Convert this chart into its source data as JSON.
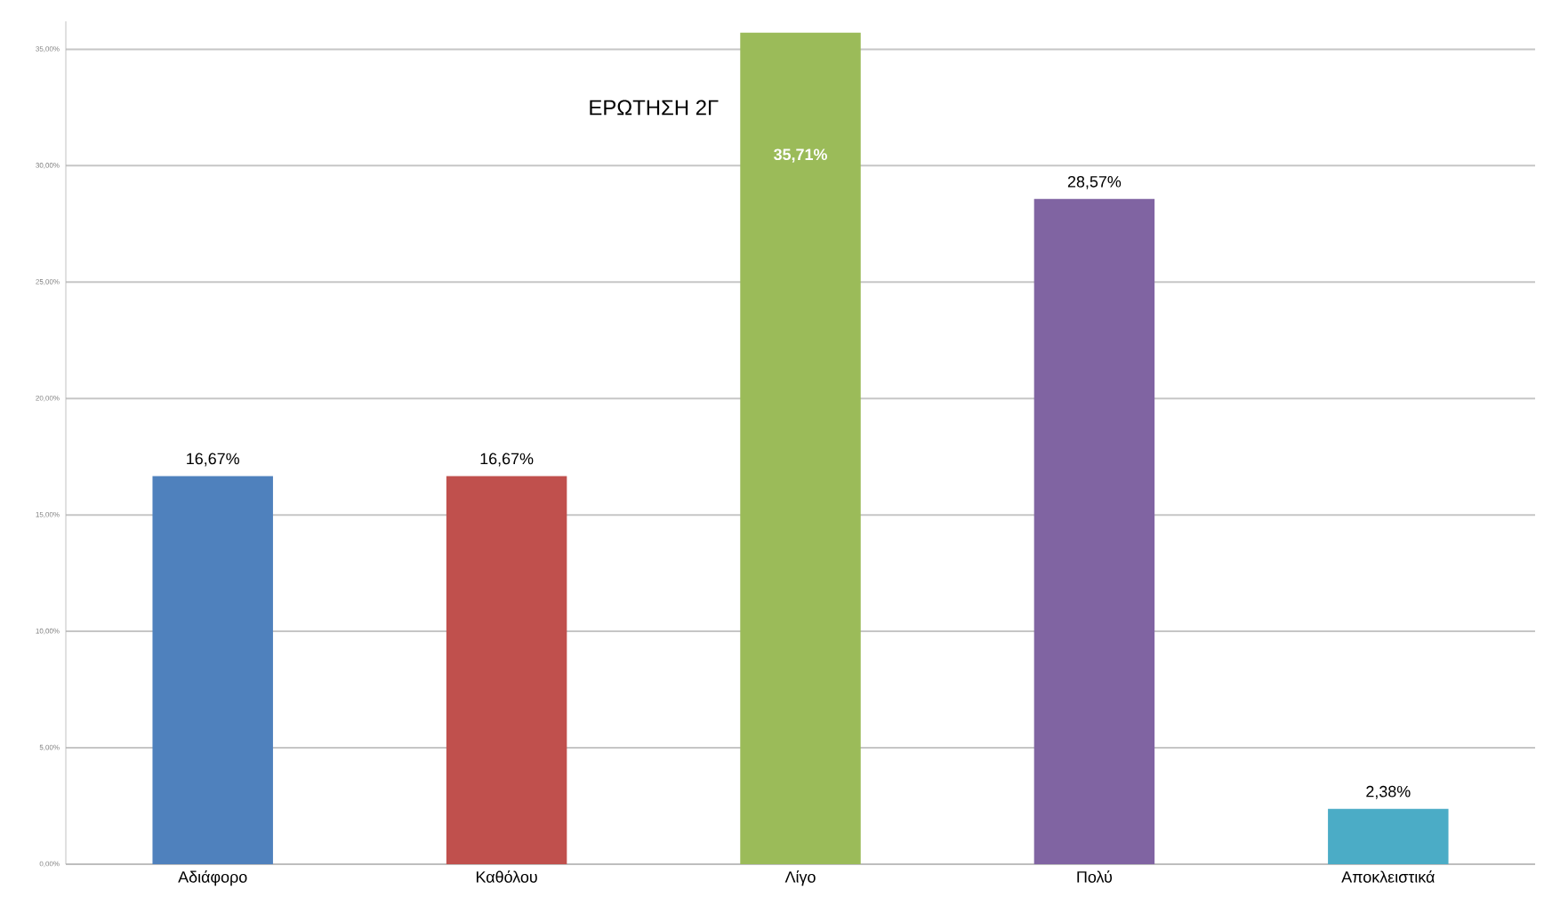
{
  "chart_data": {
    "type": "bar",
    "title": "ΕΡΩΤΗΣΗ 2Γ",
    "categories": [
      "Αδιάφορο",
      "Καθόλου",
      "Λίγο",
      "Πολύ",
      "Αποκλειστικά"
    ],
    "values": [
      16.67,
      16.67,
      35.71,
      28.57,
      2.38
    ],
    "colors": [
      "#4f81bd",
      "#c0504d",
      "#9bbb59",
      "#8064a2",
      "#4bacc6"
    ],
    "value_labels": [
      "16,67%",
      "16,67%",
      "35,71%",
      "28,57%",
      "2,38%"
    ],
    "ylim": [
      0,
      36.2
    ],
    "yticks": [
      {
        "value": 0,
        "label": "0,00%"
      },
      {
        "value": 5,
        "label": "5,00%"
      },
      {
        "value": 10,
        "label": "10,00%"
      },
      {
        "value": 15,
        "label": "15,00%"
      },
      {
        "value": 20,
        "label": "20,00%"
      },
      {
        "value": 25,
        "label": "25,00%"
      },
      {
        "value": 30,
        "label": "30,00%"
      },
      {
        "value": 35,
        "label": "35,00%"
      }
    ],
    "grid": "y"
  }
}
